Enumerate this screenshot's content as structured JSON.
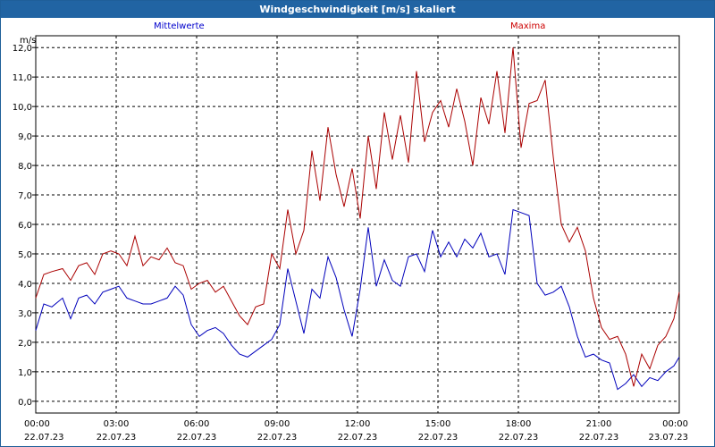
{
  "title": "Windgeschwindigkeit [m/s] skaliert",
  "colors": {
    "titlebar": "#2164a3",
    "mean": "#0000bb",
    "max": "#aa0000"
  },
  "chart_data": {
    "type": "line",
    "ylabel": "m/s",
    "ylim": [
      -0.4,
      12.4
    ],
    "yticks": [
      "0,0",
      "1,0",
      "2,0",
      "3,0",
      "4,0",
      "5,0",
      "6,0",
      "7,0",
      "8,0",
      "9,0",
      "10,0",
      "11,0",
      "12,0"
    ],
    "xlim_hours": [
      0,
      24
    ],
    "xticks": [
      {
        "time": "00:00",
        "date": "22.07.23"
      },
      {
        "time": "03:00",
        "date": "22.07.23"
      },
      {
        "time": "06:00",
        "date": "22.07.23"
      },
      {
        "time": "09:00",
        "date": "22.07.23"
      },
      {
        "time": "12:00",
        "date": "22.07.23"
      },
      {
        "time": "15:00",
        "date": "22.07.23"
      },
      {
        "time": "18:00",
        "date": "22.07.23"
      },
      {
        "time": "21:00",
        "date": "22.07.23"
      },
      {
        "time": "00:00",
        "date": "23.07.23"
      }
    ],
    "grid": true,
    "series": [
      {
        "name": "Mittelwerte",
        "color": "#0000bb",
        "x": [
          0,
          0.3,
          0.6,
          1,
          1.3,
          1.6,
          1.9,
          2.2,
          2.5,
          2.8,
          3.1,
          3.4,
          3.7,
          4,
          4.3,
          4.6,
          4.9,
          5.2,
          5.5,
          5.8,
          6.1,
          6.4,
          6.7,
          7,
          7.3,
          7.6,
          7.9,
          8.2,
          8.5,
          8.8,
          9.1,
          9.4,
          9.7,
          10,
          10.3,
          10.6,
          10.9,
          11.2,
          11.5,
          11.8,
          12.1,
          12.4,
          12.7,
          13,
          13.3,
          13.6,
          13.9,
          14.2,
          14.5,
          14.8,
          15.1,
          15.4,
          15.7,
          16,
          16.3,
          16.6,
          16.9,
          17.2,
          17.5,
          17.8,
          18.1,
          18.4,
          18.7,
          19,
          19.3,
          19.6,
          19.9,
          20.2,
          20.5,
          20.8,
          21.1,
          21.4,
          21.7,
          22,
          22.3,
          22.6,
          22.9,
          23.2,
          23.5,
          23.8,
          24
        ],
        "values": [
          2.4,
          3.3,
          3.2,
          3.5,
          2.8,
          3.5,
          3.6,
          3.3,
          3.7,
          3.8,
          3.9,
          3.5,
          3.4,
          3.3,
          3.3,
          3.4,
          3.5,
          3.9,
          3.6,
          2.6,
          2.2,
          2.4,
          2.5,
          2.3,
          1.9,
          1.6,
          1.5,
          1.7,
          1.9,
          2.1,
          2.6,
          4.5,
          3.4,
          2.3,
          3.8,
          3.5,
          4.9,
          4.2,
          3.1,
          2.2,
          3.8,
          5.9,
          3.9,
          4.8,
          4.1,
          3.9,
          4.9,
          5.0,
          4.4,
          5.8,
          4.9,
          5.4,
          4.9,
          5.5,
          5.2,
          5.7,
          4.9,
          5.0,
          4.3,
          6.5,
          6.4,
          6.3,
          4.0,
          3.6,
          3.7,
          3.9,
          3.2,
          2.2,
          1.5,
          1.6,
          1.4,
          1.3,
          0.4,
          0.6,
          0.9,
          0.5,
          0.8,
          0.7,
          1.0,
          1.2,
          1.5
        ]
      },
      {
        "name": "Maxima",
        "color": "#aa0000",
        "x": [
          0,
          0.3,
          0.6,
          1,
          1.3,
          1.6,
          1.9,
          2.2,
          2.5,
          2.8,
          3.1,
          3.4,
          3.7,
          4,
          4.3,
          4.6,
          4.9,
          5.2,
          5.5,
          5.8,
          6.1,
          6.4,
          6.7,
          7,
          7.3,
          7.6,
          7.9,
          8.2,
          8.5,
          8.8,
          9.1,
          9.4,
          9.7,
          10,
          10.3,
          10.6,
          10.9,
          11.2,
          11.5,
          11.8,
          12.1,
          12.4,
          12.7,
          13,
          13.3,
          13.6,
          13.9,
          14.2,
          14.5,
          14.8,
          15.1,
          15.4,
          15.7,
          16,
          16.3,
          16.6,
          16.9,
          17.2,
          17.5,
          17.8,
          18.1,
          18.4,
          18.7,
          19,
          19.3,
          19.6,
          19.9,
          20.2,
          20.5,
          20.8,
          21.1,
          21.4,
          21.7,
          22,
          22.3,
          22.6,
          22.9,
          23.2,
          23.5,
          23.8,
          24
        ],
        "values": [
          3.5,
          4.3,
          4.4,
          4.5,
          4.1,
          4.6,
          4.7,
          4.3,
          5.0,
          5.1,
          5.0,
          4.6,
          5.6,
          4.6,
          4.9,
          4.8,
          5.2,
          4.7,
          4.6,
          3.8,
          4.0,
          4.1,
          3.7,
          3.9,
          3.4,
          2.9,
          2.6,
          3.2,
          3.3,
          5.0,
          4.5,
          6.5,
          5.0,
          5.8,
          8.5,
          6.8,
          9.3,
          7.7,
          6.6,
          7.9,
          6.2,
          9.0,
          7.2,
          9.8,
          8.2,
          9.7,
          8.1,
          11.2,
          8.8,
          9.8,
          10.2,
          9.3,
          10.6,
          9.5,
          8.0,
          10.3,
          9.4,
          11.2,
          9.1,
          12.0,
          8.6,
          10.1,
          10.2,
          10.9,
          8.3,
          6.0,
          5.4,
          5.9,
          5.1,
          3.5,
          2.5,
          2.1,
          2.2,
          1.6,
          0.5,
          1.6,
          1.1,
          1.9,
          2.2,
          2.8,
          3.7
        ]
      }
    ]
  }
}
